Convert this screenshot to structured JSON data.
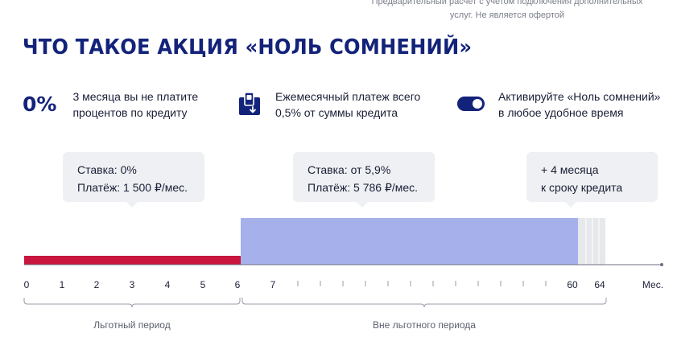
{
  "disclaimer": {
    "line1": "Предварительный расчет с учетом подключения дополнительных",
    "line2": "услуг. Не является офертой"
  },
  "heading": "ЧТО ТАКОЕ АКЦИЯ «НОЛЬ СОМНЕНИЙ»",
  "features": [
    {
      "icon": "percent",
      "badge": "0%",
      "line1": "3 месяца вы не платите",
      "line2": "процентов по кредиту"
    },
    {
      "icon": "payment-icon",
      "line1": "Ежемесячный платеж всего",
      "line2": "0,5% от суммы кредита"
    },
    {
      "icon": "toggle-icon",
      "line1": "Активируйте «Ноль сомнений»",
      "line2": "в любое удобное время"
    }
  ],
  "bubbles": [
    {
      "line1": "Ставка: 0%",
      "line2": "Платёж: 1 500 ₽/мес."
    },
    {
      "line1": "Ставка: от 5,9%",
      "line2": "Платёж: 5 786 ₽/мес."
    },
    {
      "line1": "+ 4 месяца",
      "line2": "к сроку кредита"
    }
  ],
  "timeline": {
    "axis_labels": [
      "0",
      "1",
      "2",
      "3",
      "4",
      "5",
      "6",
      "7",
      "60",
      "64",
      "Мес."
    ],
    "grace_period_label": "Льготный период",
    "post_grace_label": "Вне льготного периода",
    "colors": {
      "grace_bar": "#c8163f",
      "main_bar": "#a6b0ea",
      "extension_bar": "#e6e8ec",
      "axis": "#6c6f80"
    }
  }
}
